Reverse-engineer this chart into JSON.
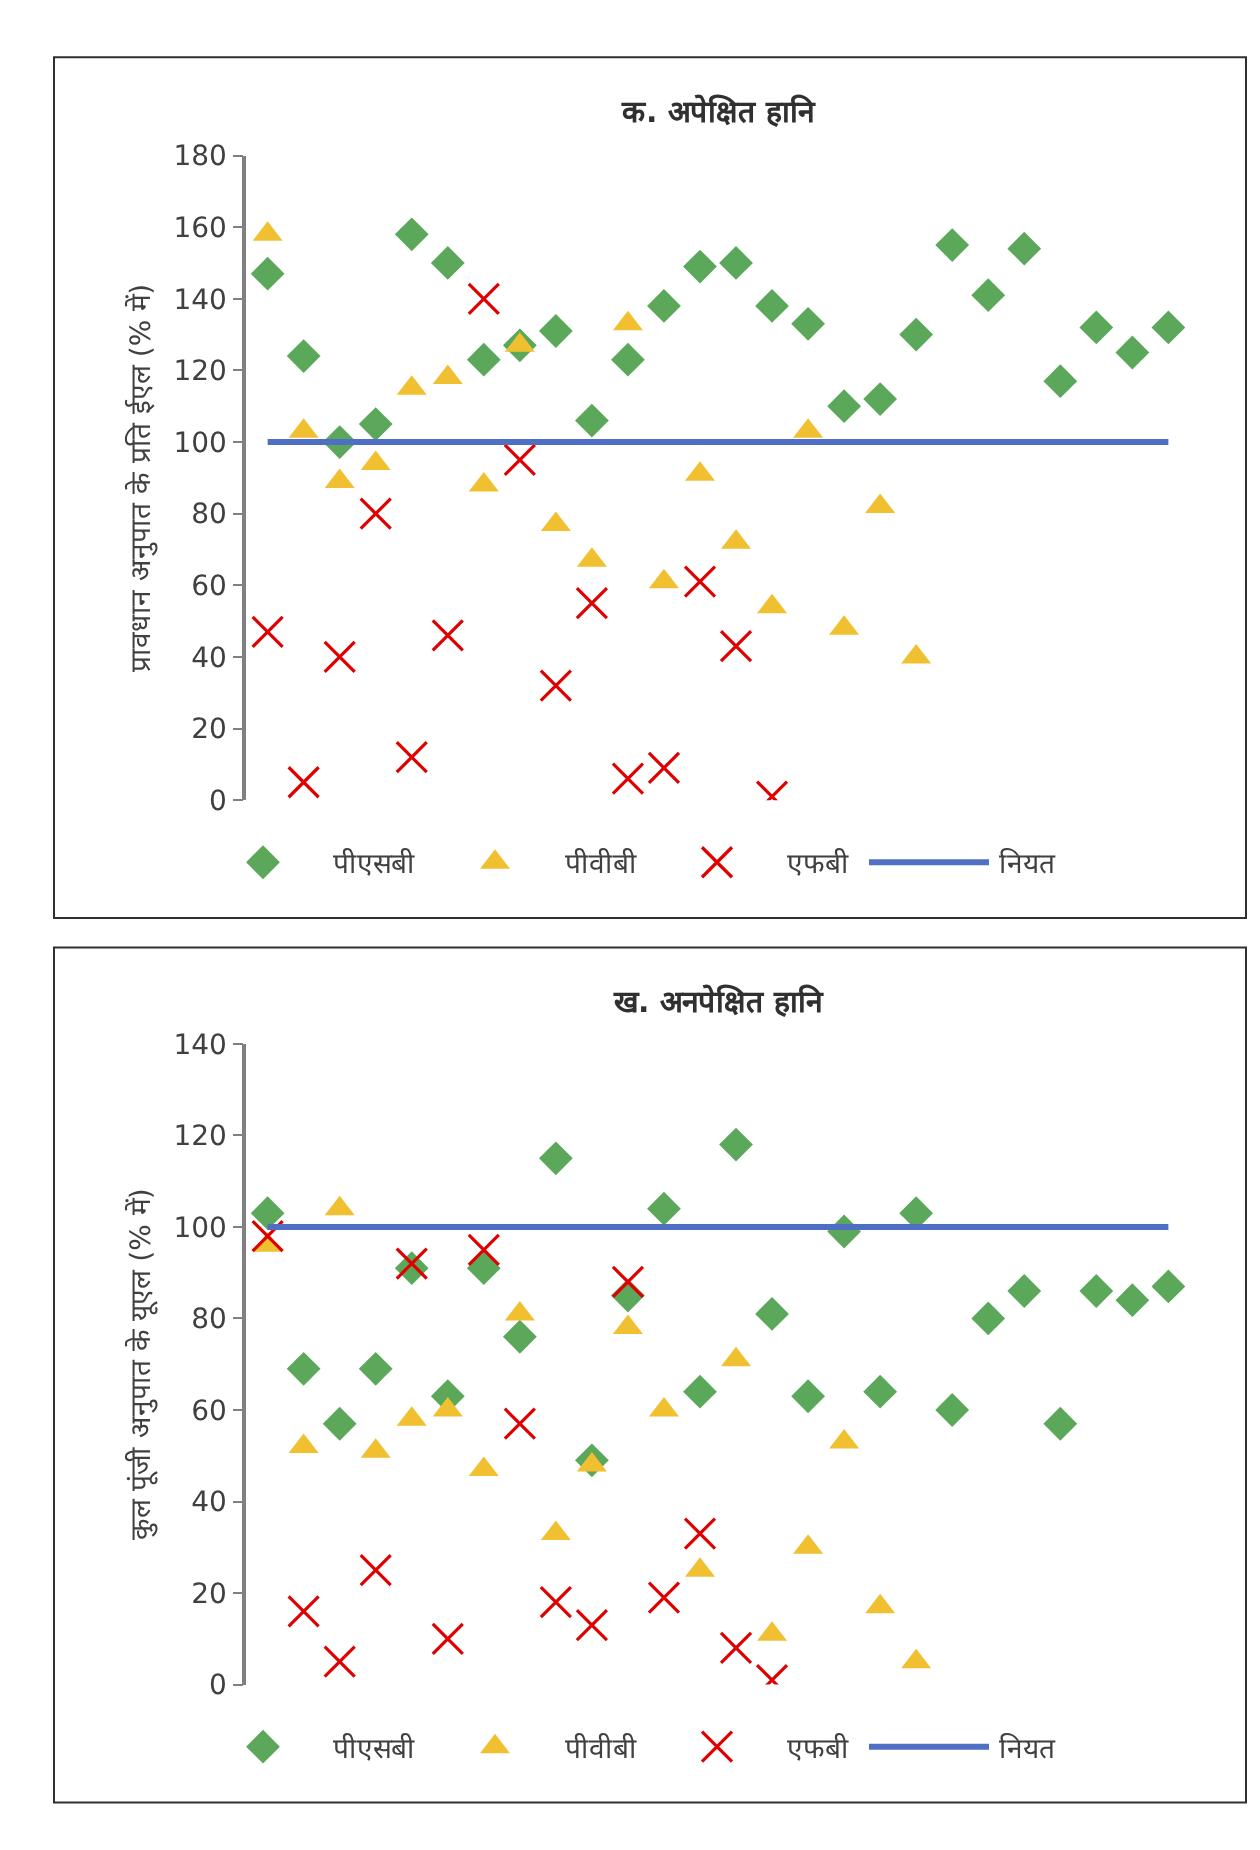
{
  "chart_data": [
    {
      "type": "scatter",
      "title": "क. अपेक्षित हानि",
      "ylabel": "प्रावधान अनुपात के प्रति ईएल (% में)",
      "categories": [
        null,
        null,
        null,
        null,
        null,
        null,
        null,
        null,
        null,
        null,
        null,
        null,
        null,
        null,
        null,
        null,
        null,
        null,
        null,
        null,
        null,
        null,
        null,
        null,
        null,
        null
      ],
      "ylim": [
        0,
        180
      ],
      "yticks": [
        0,
        20,
        40,
        60,
        80,
        100,
        120,
        140,
        160,
        180
      ],
      "grid": false,
      "legend": "bottom",
      "tick_labels": "y",
      "series": [
        {
          "name": "पीएसबी",
          "color": "#5ba85b",
          "marker": "diamond",
          "values": [
            147,
            124,
            100,
            105,
            158,
            150,
            123,
            127,
            131,
            106,
            123,
            138,
            149,
            150,
            138,
            133,
            110,
            112,
            130,
            155,
            141,
            154,
            117,
            132,
            125,
            132
          ]
        },
        {
          "name": "पीवीबी",
          "color": "#f0c030",
          "marker": "triangle",
          "values": [
            158,
            103,
            89,
            94,
            115,
            118,
            88,
            127,
            77,
            67,
            133,
            61,
            91,
            72,
            54,
            103,
            48,
            82,
            40,
            null,
            null,
            null,
            null,
            null,
            null,
            null
          ]
        },
        {
          "name": "एफबी",
          "color": "#e00000",
          "marker": "cross",
          "values": [
            47,
            5,
            40,
            80,
            12,
            46,
            140,
            95,
            32,
            55,
            6,
            9,
            61,
            43,
            1,
            null,
            null,
            null,
            null,
            null,
            null,
            null,
            null,
            null,
            null,
            null
          ]
        },
        {
          "name": "नियत",
          "color": "#4f6fc4",
          "type": "line",
          "marker": "none",
          "values": [
            100,
            100,
            100,
            100,
            100,
            100,
            100,
            100,
            100,
            100,
            100,
            100,
            100,
            100,
            100,
            100,
            100,
            100,
            100,
            100,
            100,
            100,
            100,
            100,
            100,
            100
          ]
        }
      ]
    },
    {
      "type": "scatter",
      "title": "ख. अनपेक्षित हानि",
      "ylabel": "कुल पूंजी अनुपात के यूएल (% में)",
      "categories": [
        null,
        null,
        null,
        null,
        null,
        null,
        null,
        null,
        null,
        null,
        null,
        null,
        null,
        null,
        null,
        null,
        null,
        null,
        null,
        null,
        null,
        null,
        null,
        null,
        null,
        null
      ],
      "ylim": [
        0,
        140
      ],
      "yticks": [
        0,
        20,
        40,
        60,
        80,
        100,
        120,
        140
      ],
      "grid": false,
      "legend": "bottom",
      "tick_labels": "y",
      "series": [
        {
          "name": "पीएसबी",
          "color": "#5ba85b",
          "marker": "diamond",
          "values": [
            103,
            69,
            57,
            69,
            91,
            63,
            91,
            76,
            115,
            49,
            85,
            104,
            64,
            118,
            81,
            63,
            99,
            64,
            103,
            60,
            80,
            86,
            57,
            86,
            84,
            87
          ]
        },
        {
          "name": "पीवीबी",
          "color": "#f0c030",
          "marker": "triangle",
          "values": [
            96,
            52,
            104,
            51,
            58,
            60,
            47,
            81,
            33,
            48,
            78,
            60,
            25,
            71,
            11,
            30,
            53,
            17,
            5,
            null,
            null,
            null,
            null,
            null,
            null,
            null
          ]
        },
        {
          "name": "एफबी",
          "color": "#e00000",
          "marker": "cross",
          "values": [
            98,
            16,
            5,
            25,
            92,
            10,
            95,
            57,
            18,
            13,
            88,
            19,
            33,
            8,
            1,
            null,
            null,
            null,
            null,
            null,
            null,
            null,
            null,
            null,
            null,
            null
          ]
        },
        {
          "name": "नियत",
          "color": "#4f6fc4",
          "type": "line",
          "marker": "none",
          "values": [
            100,
            100,
            100,
            100,
            100,
            100,
            100,
            100,
            100,
            100,
            100,
            100,
            100,
            100,
            100,
            100,
            100,
            100,
            100,
            100,
            100,
            100,
            100,
            100,
            100,
            100
          ]
        }
      ]
    }
  ]
}
